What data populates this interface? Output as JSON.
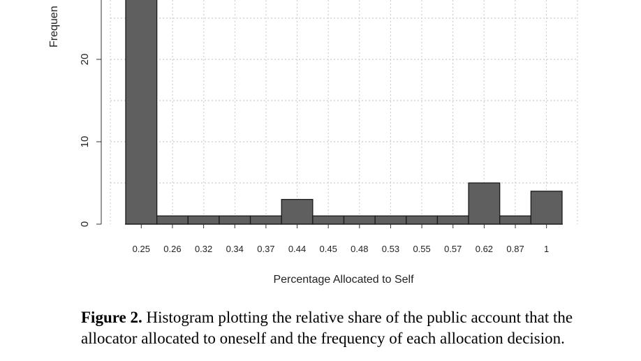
{
  "chart_data": {
    "type": "bar",
    "title": "",
    "xlabel": "Percentage Allocated to Self",
    "ylabel": "Frequen",
    "categories": [
      "0.25",
      "0.26",
      "0.32",
      "0.34",
      "0.37",
      "0.44",
      "0.45",
      "0.48",
      "0.53",
      "0.55",
      "0.57",
      "0.62",
      "0.87",
      "1"
    ],
    "values": [
      28,
      1,
      1,
      1,
      1,
      3,
      1,
      1,
      1,
      1,
      1,
      5,
      1,
      4
    ],
    "yticks": [
      "0",
      "10",
      "20"
    ],
    "ylim": [
      0,
      27.3
    ],
    "grid": true,
    "bar_color": "#5f5f5f"
  },
  "caption": {
    "label": "Figure 2.",
    "text": " Histogram plotting the relative share of the public account that the allocator allocated to oneself and the frequency of each allocation decision."
  }
}
